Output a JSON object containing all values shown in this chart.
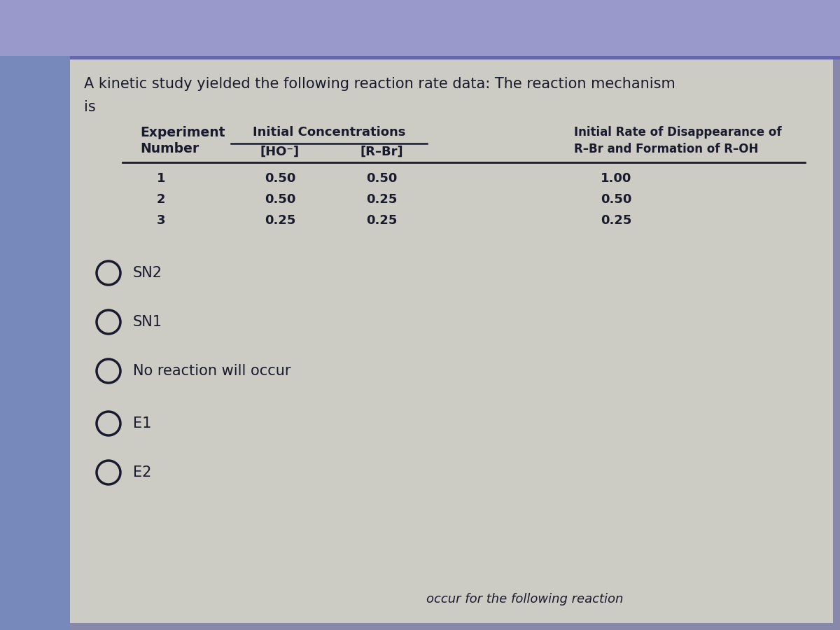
{
  "bg_outer": "#8888aa",
  "bg_left_strip": "#7777aa",
  "bg_top_strip": "#9999bb",
  "card_color": "#d8d8d0",
  "text_color": "#1a1a2e",
  "title_line1": "A kinetic study yielded the following reaction rate data: The reaction mechanism",
  "title_line2": "is",
  "col1_header": "Experiment\nNumber",
  "col2_header": "Initial Concentrations",
  "col2a_header": "[HO⁻]",
  "col2b_header": "[R–Br]",
  "col3_header": "Initial Rate of Disappearance of\nR–Br and Formation of R–OH",
  "exp_numbers": [
    "1",
    "2",
    "3"
  ],
  "ho_conc": [
    "0.50",
    "0.50",
    "0.25"
  ],
  "rbr_conc": [
    "0.50",
    "0.25",
    "0.25"
  ],
  "rates": [
    "1.00",
    "0.50",
    "0.25"
  ],
  "options": [
    "SN2",
    "SN1",
    "No reaction will occur",
    "E1",
    "E2"
  ],
  "footer_text": "occur for the following reaction"
}
